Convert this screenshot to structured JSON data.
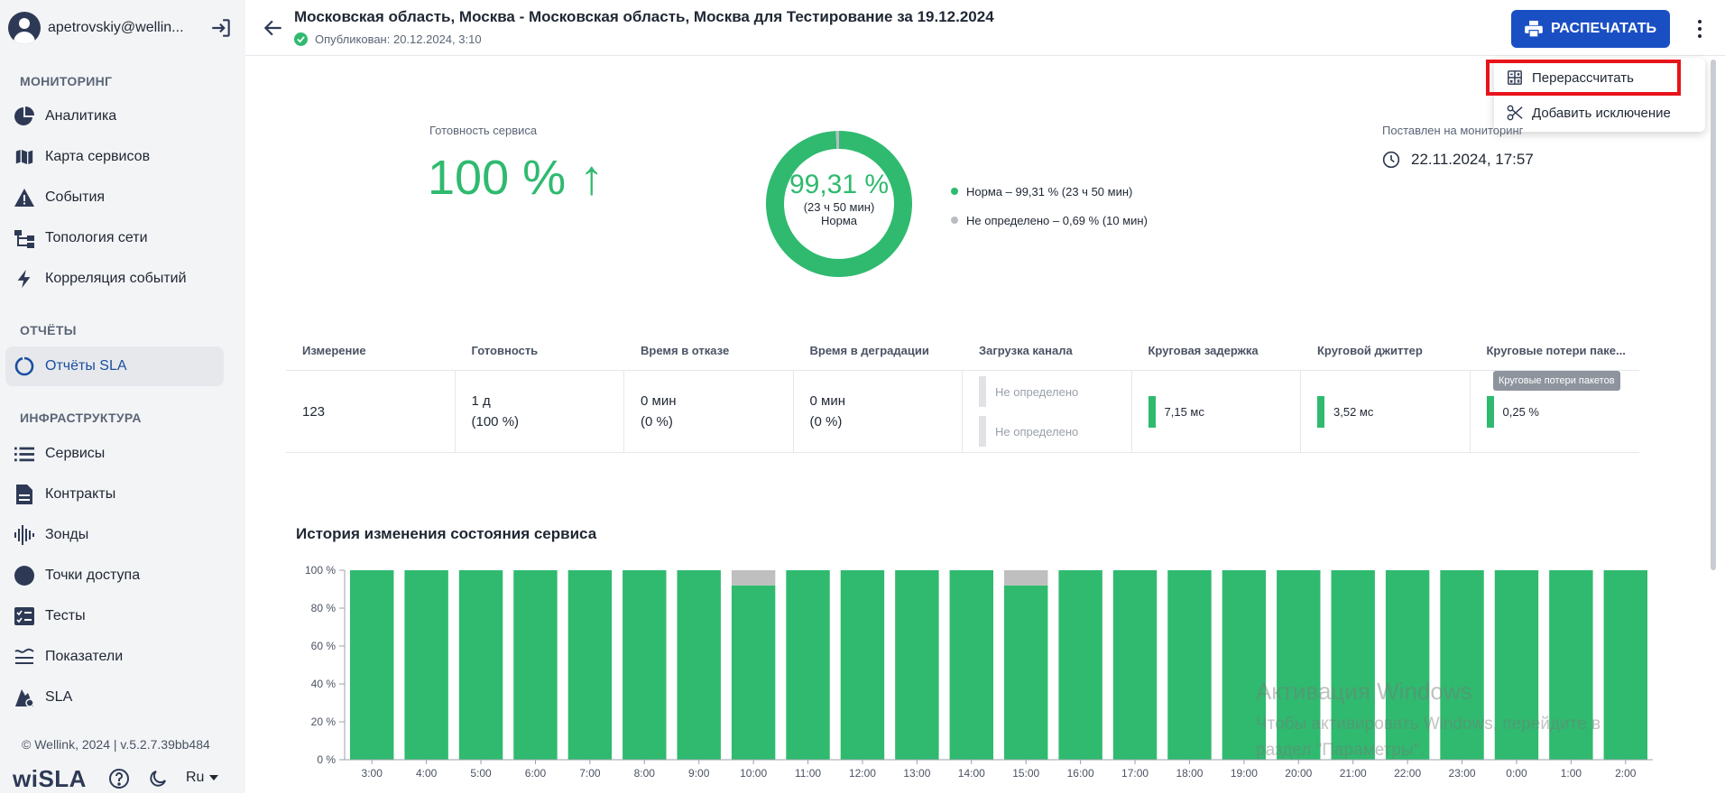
{
  "sidebar": {
    "user_email": "apetrovskiy@wellin...",
    "sections": {
      "monitoring": "МОНИТОРИНГ",
      "reports": "ОТЧЁТЫ",
      "infrastructure": "ИНФРАСТРУКТУРА"
    },
    "items": [
      {
        "label": "Аналитика",
        "icon": "pie-chart-icon"
      },
      {
        "label": "Карта сервисов",
        "icon": "map-icon"
      },
      {
        "label": "События",
        "icon": "warning-icon"
      },
      {
        "label": "Топология сети",
        "icon": "topology-icon"
      },
      {
        "label": "Корреляция событий",
        "icon": "lightning-icon"
      },
      {
        "label": "Отчёты SLA",
        "icon": "sla-report-icon",
        "active": true
      },
      {
        "label": "Сервисы",
        "icon": "list-icon"
      },
      {
        "label": "Контракты",
        "icon": "document-icon"
      },
      {
        "label": "Зонды",
        "icon": "probe-icon"
      },
      {
        "label": "Точки доступа",
        "icon": "access-point-icon"
      },
      {
        "label": "Тесты",
        "icon": "test-icon"
      },
      {
        "label": "Показатели",
        "icon": "metrics-icon"
      },
      {
        "label": "SLA",
        "icon": "sla-icon"
      }
    ],
    "version": "© Wellink, 2024 | v.5.2.7.39bb484",
    "brand": "wiSLA",
    "language": "Ru"
  },
  "header": {
    "title": "Московская область, Москва - Московская область, Москва для Тестирование за 19.12.2024",
    "published": "Опубликован: 20.12.2024, 3:10",
    "print_label": "РАСПЕЧАТАТЬ"
  },
  "menu": {
    "items": [
      {
        "label": "Перерассчитать",
        "icon": "calculator-icon"
      },
      {
        "label": "Добавить исключение",
        "icon": "scissors-icon"
      }
    ]
  },
  "summary": {
    "readiness_label": "Готовность сервиса",
    "readiness_value": "100 % ↑",
    "donut_pct": "99,31 %",
    "donut_time": "(23 ч 50 мин)",
    "donut_state": "Норма",
    "legend": [
      {
        "label": "Норма – 99,31 % (23 ч 50 мин)",
        "color": "#2fba6f"
      },
      {
        "label": "Не определено – 0,69 % (10 мин)",
        "color": "#b9bcc2"
      }
    ],
    "donut_fractions": {
      "normal": 0.9931,
      "undefined": 0.0069
    },
    "monitor_label": "Поставлен на мониторинг",
    "monitor_value": "22.11.2024, 17:57"
  },
  "table": {
    "headers": [
      "Измерение",
      "Готовность",
      "Время в отказе",
      "Время в деградации",
      "Загрузка канала",
      "Круговая задержка",
      "Круговой джиттер",
      "Круговые потери паке..."
    ],
    "row": {
      "measurement": "123",
      "readiness_1": "1 д",
      "readiness_2": "(100 %)",
      "outage_1": "0 мин",
      "outage_2": "(0 %)",
      "degradation_1": "0 мин",
      "degradation_2": "(0 %)",
      "channel_1": "Не определено",
      "channel_2": "Не определено",
      "delay": "7,15 мс",
      "jitter": "3,52 мс",
      "loss": "0,25 %"
    },
    "tooltip": "Круговые потери пакетов"
  },
  "history": {
    "title": "История изменения состояния сервиса"
  },
  "chart_data": {
    "type": "bar",
    "title": "История изменения состояния сервиса",
    "categories": [
      "3:00",
      "4:00",
      "5:00",
      "6:00",
      "7:00",
      "8:00",
      "9:00",
      "10:00",
      "11:00",
      "12:00",
      "13:00",
      "14:00",
      "15:00",
      "16:00",
      "17:00",
      "18:00",
      "19:00",
      "20:00",
      "21:00",
      "22:00",
      "23:00",
      "0:00",
      "1:00",
      "2:00"
    ],
    "y_ticks": [
      "100 %",
      "80 %",
      "60 %",
      "40 %",
      "20 %",
      "0 %"
    ],
    "ylim": [
      0,
      100
    ],
    "stacked": true,
    "series": [
      {
        "color": "#2fba6f",
        "values": [
          100,
          100,
          100,
          100,
          100,
          100,
          100,
          92,
          100,
          100,
          100,
          100,
          92,
          100,
          100,
          100,
          100,
          100,
          100,
          100,
          100,
          100,
          100,
          100
        ]
      },
      {
        "color": "#bfbfbf",
        "values": [
          0,
          0,
          0,
          0,
          0,
          0,
          0,
          8,
          0,
          0,
          0,
          0,
          8,
          0,
          0,
          0,
          0,
          0,
          0,
          0,
          0,
          0,
          0,
          0
        ]
      }
    ]
  },
  "watermark": {
    "line1": "Активация Windows",
    "line2": "Чтобы активировать Windows, перейдите в",
    "line3": "раздел \"Параметры\"."
  }
}
